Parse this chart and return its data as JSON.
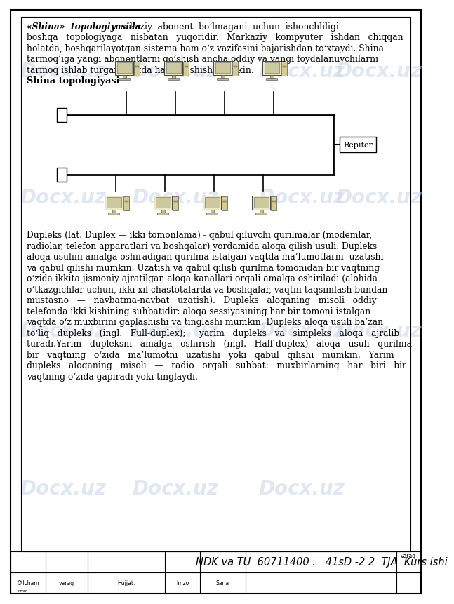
{
  "bg_color": "#ffffff",
  "border_color": "#000000",
  "text_color": "#000000",
  "watermark_color": "#c8d4e8",
  "repiter_label": "Repiter",
  "footer_col1": "O‘lcham",
  "footer_col2": "varaq",
  "footer_col3": "Hujjat:",
  "footer_col4": "Imzo",
  "footer_col5": "Sana",
  "footer_main": "NDK va TU  60711400 .   41sD -2 2  TJA  Kurs ishi",
  "footer_top_right": "varaq",
  "footer_row_label": "nmm",
  "line1_bold": "«Shina»  topologiyasida",
  "line1_rest": " markaziy  abonent  bo‘lmagani  uchun  ishonchliligi",
  "lines_p1": [
    "boshqa   topologiyaga   nisbatan   yuqoridir.   Markaziy   kompyuter   ishdan   chiqqan",
    "holatda, boshqarilayotgan sistema ham o‘z vazifasini bajarishdan to‘xtaydi. Shina",
    "tarmoq’iga yangi abonentlarni qo‘shish ancha oddiy va yangi foydalanuvchilarni",
    "tarmoq ishlab turgan vaqtda ham qo‘shish mumkin."
  ],
  "subtitle": "Shina topologiyasi",
  "lines_p2": [
    "Dupleks (lat. Duplex — ikki tomonlama) - qabul qiluvchi qurilmalar (modemlar,",
    "radiolar, telefon apparatlari va boshqalar) yordamida aloqa qilish usuli. Dupleks",
    "aloqa usulini amalga oshiradigan qurilma istalgan vaqtda ma’lumotlarni  uzatishi",
    "va qabul qilishi mumkin. Uzatish va qabul qilish qurilma tomonidan bir vaqtning",
    "o‘zida ikkita jismoniy ajratilgan aloqa kanallari orqali amalga oshiriladi (alohida",
    "o‘tkazgichlar uchun, ikki xil chastotalarda va boshqalar, vaqtni taqsimlash bundan",
    "mustasno   —   navbatma-navbat   uzatish).   Dupleks   aloqaning   misoli   oddiy",
    "telefonda ikki kishining suhbatidir: aloqa sessiyasining har bir tomoni istalgan",
    "vaqtda o‘z muxbirini gaplashishi va tinglashi mumkin. Dupleks aloqa usuli ba’zan",
    "to‘liq   dupleks   (ingl.   Full-duplex);     yarim   dupleks   va   simpleks   aloqa   ajralib",
    "turadi.Yarim   dupleksni   amalga   oshirish   (ingl.   Half-duplex)   aloqa   usuli   qurilma",
    "bir   vaqtning   o‘zida   ma’lumotni   uzatishi   yoki   qabul   qilishi   mumkin.   Yarim",
    "dupleks   aloqaning   misoli   —   radio   orqali   suhbat:   muxbirlarning   har   biri   bir",
    "vaqtning o‘zida gapiradi yoki tinglaydi."
  ]
}
